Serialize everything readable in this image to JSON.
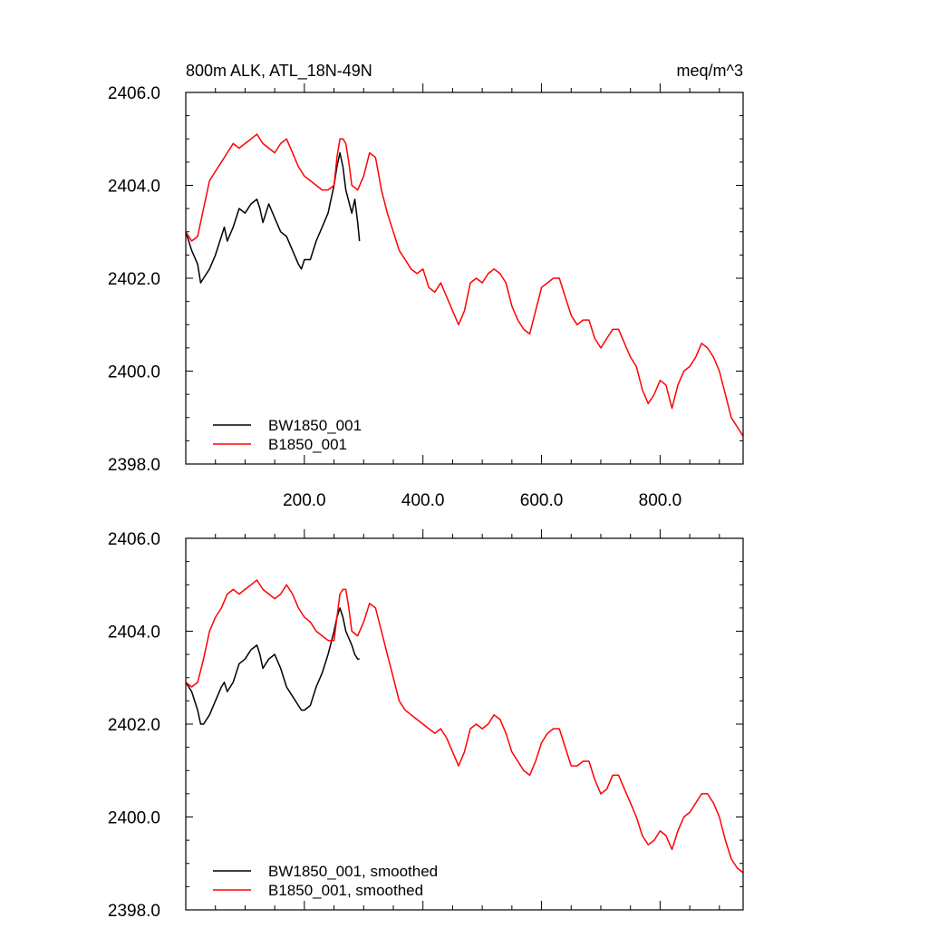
{
  "chart_data": [
    {
      "type": "line",
      "title": "800m ALK, ATL_18N-49N",
      "units": "meq/m^3",
      "xlim": [
        0,
        940
      ],
      "ylim": [
        2398,
        2406
      ],
      "xticks": [
        200,
        400,
        600,
        800
      ],
      "xtick_labels": [
        "200.0",
        "400.0",
        "600.0",
        "800.0"
      ],
      "yticks": [
        2398,
        2400,
        2402,
        2404,
        2406
      ],
      "ytick_labels": [
        "2398.0",
        "2400.0",
        "2402.0",
        "2404.0",
        "2406.0"
      ],
      "legend_position": "bottom-left",
      "series": [
        {
          "name": "BW1850_001",
          "color": "#000000",
          "x": [
            0,
            10,
            20,
            25,
            30,
            40,
            50,
            60,
            65,
            70,
            80,
            90,
            100,
            110,
            120,
            125,
            130,
            140,
            150,
            160,
            170,
            180,
            190,
            195,
            200,
            210,
            220,
            230,
            240,
            250,
            255,
            260,
            265,
            270,
            280,
            285,
            290,
            293
          ],
          "y": [
            2403.0,
            2402.6,
            2402.3,
            2401.9,
            2402.0,
            2402.2,
            2402.5,
            2402.9,
            2403.1,
            2402.8,
            2403.1,
            2403.5,
            2403.4,
            2403.6,
            2403.7,
            2403.5,
            2403.2,
            2403.6,
            2403.3,
            2403.0,
            2402.9,
            2402.6,
            2402.3,
            2402.2,
            2402.4,
            2402.4,
            2402.8,
            2403.1,
            2403.4,
            2404.0,
            2404.4,
            2404.7,
            2404.4,
            2403.9,
            2403.4,
            2403.7,
            2403.2,
            2402.8
          ]
        },
        {
          "name": "B1850_001",
          "color": "#ff0000",
          "x": [
            0,
            10,
            20,
            30,
            40,
            50,
            60,
            70,
            80,
            90,
            100,
            110,
            120,
            130,
            140,
            150,
            160,
            170,
            180,
            190,
            200,
            210,
            220,
            230,
            240,
            250,
            255,
            260,
            265,
            270,
            275,
            280,
            290,
            300,
            310,
            320,
            330,
            340,
            350,
            360,
            370,
            380,
            390,
            400,
            410,
            420,
            430,
            440,
            450,
            460,
            470,
            480,
            490,
            500,
            510,
            520,
            530,
            540,
            550,
            560,
            570,
            580,
            590,
            600,
            610,
            620,
            630,
            640,
            650,
            660,
            670,
            680,
            690,
            700,
            710,
            720,
            730,
            740,
            750,
            760,
            770,
            780,
            790,
            800,
            810,
            820,
            830,
            840,
            850,
            860,
            870,
            880,
            890,
            900,
            910,
            920,
            930,
            940
          ],
          "y": [
            2403.0,
            2402.8,
            2402.9,
            2403.5,
            2404.1,
            2404.3,
            2404.5,
            2404.7,
            2404.9,
            2404.8,
            2404.9,
            2405.0,
            2405.1,
            2404.9,
            2404.8,
            2404.7,
            2404.9,
            2405.0,
            2404.7,
            2404.4,
            2404.2,
            2404.1,
            2404.0,
            2403.9,
            2403.9,
            2404.0,
            2404.6,
            2405.0,
            2405.0,
            2404.9,
            2404.5,
            2404.0,
            2403.9,
            2404.2,
            2404.7,
            2404.6,
            2403.9,
            2403.4,
            2403.0,
            2402.6,
            2402.4,
            2402.2,
            2402.1,
            2402.2,
            2401.8,
            2401.7,
            2401.9,
            2401.6,
            2401.3,
            2401.0,
            2401.3,
            2401.9,
            2402.0,
            2401.9,
            2402.1,
            2402.2,
            2402.1,
            2401.9,
            2401.4,
            2401.1,
            2400.9,
            2400.8,
            2401.3,
            2401.8,
            2401.9,
            2402.0,
            2402.0,
            2401.6,
            2401.2,
            2401.0,
            2401.1,
            2401.1,
            2400.7,
            2400.5,
            2400.7,
            2400.9,
            2400.9,
            2400.6,
            2400.3,
            2400.1,
            2399.6,
            2399.3,
            2399.5,
            2399.8,
            2399.7,
            2399.2,
            2399.7,
            2400.0,
            2400.1,
            2400.3,
            2400.6,
            2400.5,
            2400.3,
            2400.0,
            2399.5,
            2399.0,
            2398.8,
            2398.6
          ]
        }
      ]
    },
    {
      "type": "line",
      "xlim": [
        0,
        940
      ],
      "ylim": [
        2398,
        2406
      ],
      "yticks": [
        2398,
        2400,
        2402,
        2404,
        2406
      ],
      "ytick_labels": [
        "2398.0",
        "2400.0",
        "2402.0",
        "2404.0",
        "2406.0"
      ],
      "legend_position": "bottom-left",
      "series": [
        {
          "name": "BW1850_001, smoothed",
          "color": "#000000",
          "x": [
            0,
            10,
            20,
            25,
            30,
            40,
            50,
            60,
            65,
            70,
            80,
            90,
            100,
            110,
            120,
            125,
            130,
            140,
            150,
            160,
            170,
            180,
            190,
            195,
            200,
            210,
            220,
            230,
            240,
            250,
            255,
            260,
            265,
            270,
            280,
            285,
            290,
            293
          ],
          "y": [
            2402.9,
            2402.7,
            2402.3,
            2402.0,
            2402.0,
            2402.2,
            2402.5,
            2402.8,
            2402.9,
            2402.7,
            2402.9,
            2403.3,
            2403.4,
            2403.6,
            2403.7,
            2403.5,
            2403.2,
            2403.4,
            2403.5,
            2403.2,
            2402.8,
            2402.6,
            2402.4,
            2402.3,
            2402.3,
            2402.4,
            2402.8,
            2403.1,
            2403.5,
            2404.0,
            2404.3,
            2404.5,
            2404.3,
            2404.0,
            2403.7,
            2403.5,
            2403.4,
            2403.4
          ]
        },
        {
          "name": "B1850_001, smoothed",
          "color": "#ff0000",
          "x": [
            0,
            10,
            20,
            30,
            40,
            50,
            60,
            70,
            80,
            90,
            100,
            110,
            120,
            130,
            140,
            150,
            160,
            170,
            180,
            190,
            200,
            210,
            220,
            230,
            240,
            250,
            255,
            260,
            265,
            270,
            275,
            280,
            290,
            300,
            310,
            320,
            330,
            340,
            350,
            360,
            370,
            380,
            390,
            400,
            410,
            420,
            430,
            440,
            450,
            460,
            470,
            480,
            490,
            500,
            510,
            520,
            530,
            540,
            550,
            560,
            570,
            580,
            590,
            600,
            610,
            620,
            630,
            640,
            650,
            660,
            670,
            680,
            690,
            700,
            710,
            720,
            730,
            740,
            750,
            760,
            770,
            780,
            790,
            800,
            810,
            820,
            830,
            840,
            850,
            860,
            870,
            880,
            890,
            900,
            910,
            920,
            930,
            940
          ],
          "y": [
            2402.9,
            2402.8,
            2402.9,
            2403.4,
            2404.0,
            2404.3,
            2404.5,
            2404.8,
            2404.9,
            2404.8,
            2404.9,
            2405.0,
            2405.1,
            2404.9,
            2404.8,
            2404.7,
            2404.8,
            2405.0,
            2404.8,
            2404.5,
            2404.3,
            2404.2,
            2404.0,
            2403.9,
            2403.8,
            2403.8,
            2404.3,
            2404.8,
            2404.9,
            2404.9,
            2404.5,
            2404.0,
            2403.9,
            2404.2,
            2404.6,
            2404.5,
            2404.0,
            2403.5,
            2403.0,
            2402.5,
            2402.3,
            2402.2,
            2402.1,
            2402.0,
            2401.9,
            2401.8,
            2401.9,
            2401.7,
            2401.4,
            2401.1,
            2401.4,
            2401.9,
            2402.0,
            2401.9,
            2402.0,
            2402.2,
            2402.1,
            2401.8,
            2401.4,
            2401.2,
            2401.0,
            2400.9,
            2401.2,
            2401.6,
            2401.8,
            2401.9,
            2401.9,
            2401.5,
            2401.1,
            2401.1,
            2401.2,
            2401.2,
            2400.8,
            2400.5,
            2400.6,
            2400.9,
            2400.9,
            2400.6,
            2400.3,
            2400.0,
            2399.6,
            2399.4,
            2399.5,
            2399.7,
            2399.6,
            2399.3,
            2399.7,
            2400.0,
            2400.1,
            2400.3,
            2400.5,
            2400.5,
            2400.3,
            2400.0,
            2399.5,
            2399.1,
            2398.9,
            2398.8
          ]
        }
      ]
    }
  ]
}
